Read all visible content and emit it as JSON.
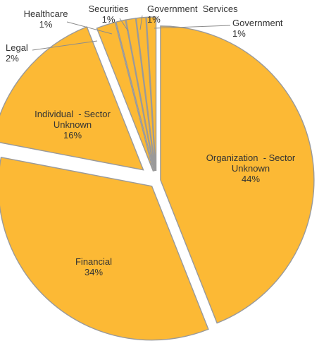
{
  "chart_data": {
    "type": "pie",
    "exploded": true,
    "series": [
      {
        "values": [
          44,
          34,
          16,
          2,
          1,
          1,
          1,
          1
        ]
      }
    ],
    "slices": [
      {
        "category": "Organization  - Sector Unknown",
        "label_lines": [
          "Organization  - Sector",
          "Unknown"
        ],
        "value": 44,
        "value_label": "44%"
      },
      {
        "category": "Financial",
        "label_lines": [
          "Financial"
        ],
        "value": 34,
        "value_label": "34%"
      },
      {
        "category": "Individual  - Sector Unknown",
        "label_lines": [
          "Individual  - Sector",
          "Unknown"
        ],
        "value": 16,
        "value_label": "16%"
      },
      {
        "category": "Legal",
        "label_lines": [
          "Legal"
        ],
        "value": 2,
        "value_label": "2%"
      },
      {
        "category": "Healthcare",
        "label_lines": [
          "Healthcare"
        ],
        "value": 1,
        "value_label": "1%"
      },
      {
        "category": "Securities",
        "label_lines": [
          "Securities"
        ],
        "value": 1,
        "value_label": "1%"
      },
      {
        "category": "Government  Services",
        "label_lines": [
          "Government  Services"
        ],
        "value": 1,
        "value_label": "1%"
      },
      {
        "category": "Government",
        "label_lines": [
          "Government"
        ],
        "value": 1,
        "value_label": "1%"
      }
    ],
    "colors": {
      "slice_fill": "#fcb935",
      "slice_stroke": "#9a9a9a",
      "label_text": "#333333"
    },
    "legend": "none",
    "data_labels": "category name and percentage"
  }
}
